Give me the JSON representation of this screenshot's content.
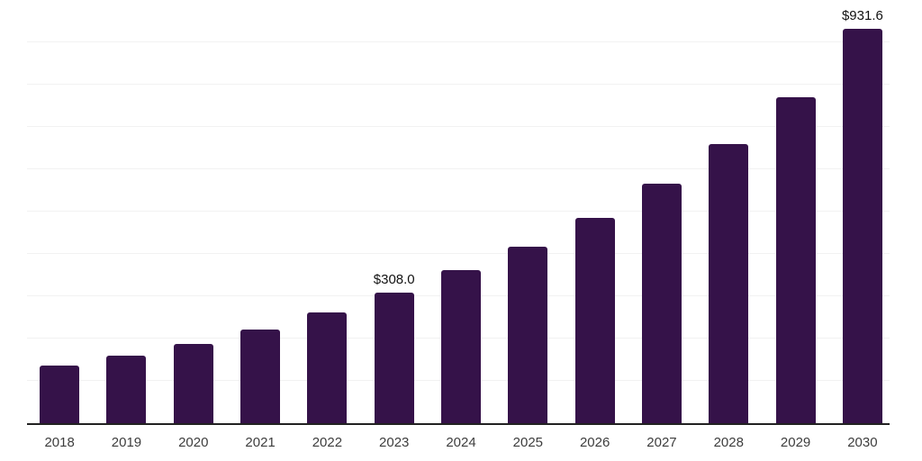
{
  "chart_data": {
    "type": "bar",
    "title": "",
    "xlabel": "",
    "ylabel": "",
    "categories": [
      "2018",
      "2019",
      "2020",
      "2021",
      "2022",
      "2023",
      "2024",
      "2025",
      "2026",
      "2027",
      "2028",
      "2029",
      "2030"
    ],
    "values": [
      135.8,
      159.2,
      186.8,
      220.7,
      261.0,
      308.0,
      360.8,
      418.1,
      486.0,
      566.6,
      660.0,
      769.4,
      931.6
    ],
    "data_labels": [
      {
        "index": 5,
        "text": "$308.0"
      },
      {
        "index": 12,
        "text": "$931.6"
      }
    ],
    "ylim": [
      0,
      1000
    ],
    "gridline_step": 100,
    "grid": true,
    "legend": false,
    "y_axis_labels_visible": false,
    "colors": {
      "bar": "#351249",
      "gridline": "#f2f2f2",
      "axis": "#222222",
      "tick_label": "#3d3d3d",
      "data_label": "#111111",
      "background": "#ffffff"
    }
  }
}
